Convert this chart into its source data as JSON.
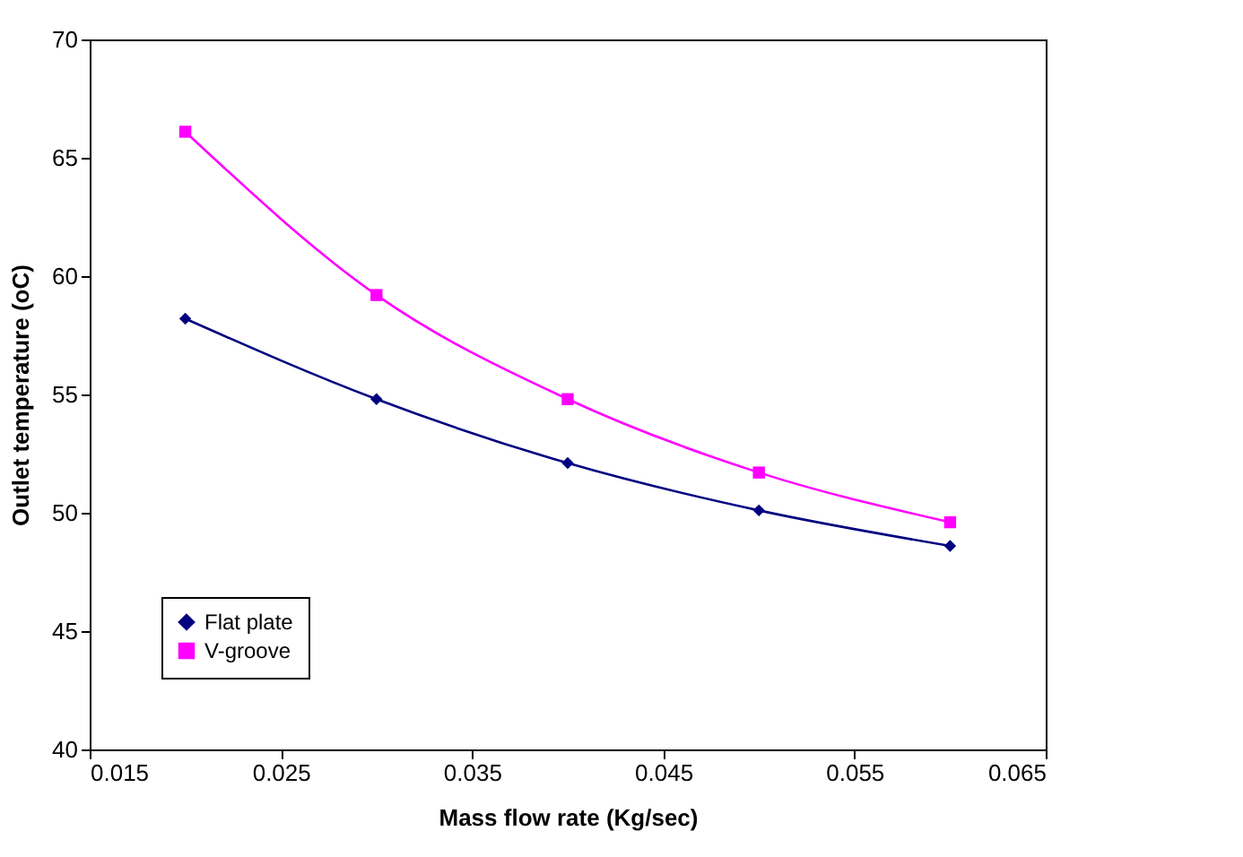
{
  "chart_data": {
    "type": "line",
    "xlabel": "Mass flow rate (Kg/sec)",
    "ylabel": "Outlet temperature (oC)",
    "x": [
      0.02,
      0.03,
      0.04,
      0.05,
      0.06
    ],
    "series": [
      {
        "name": "Flat plate",
        "color": "#000080",
        "marker": "diamond",
        "values": [
          58.2,
          54.8,
          52.1,
          50.1,
          48.6
        ]
      },
      {
        "name": "V-groove",
        "color": "#ff00ff",
        "marker": "square",
        "values": [
          66.1,
          59.2,
          54.8,
          51.7,
          49.6
        ]
      }
    ],
    "xlim": [
      0.015,
      0.065
    ],
    "xticks": [
      0.015,
      0.025,
      0.035,
      0.045,
      0.055,
      0.065
    ],
    "ylim": [
      40,
      70
    ],
    "yticks": [
      40,
      45,
      50,
      55,
      60,
      65,
      70
    ],
    "grid": false,
    "legend": "bottom left",
    "line_style": "solid"
  }
}
